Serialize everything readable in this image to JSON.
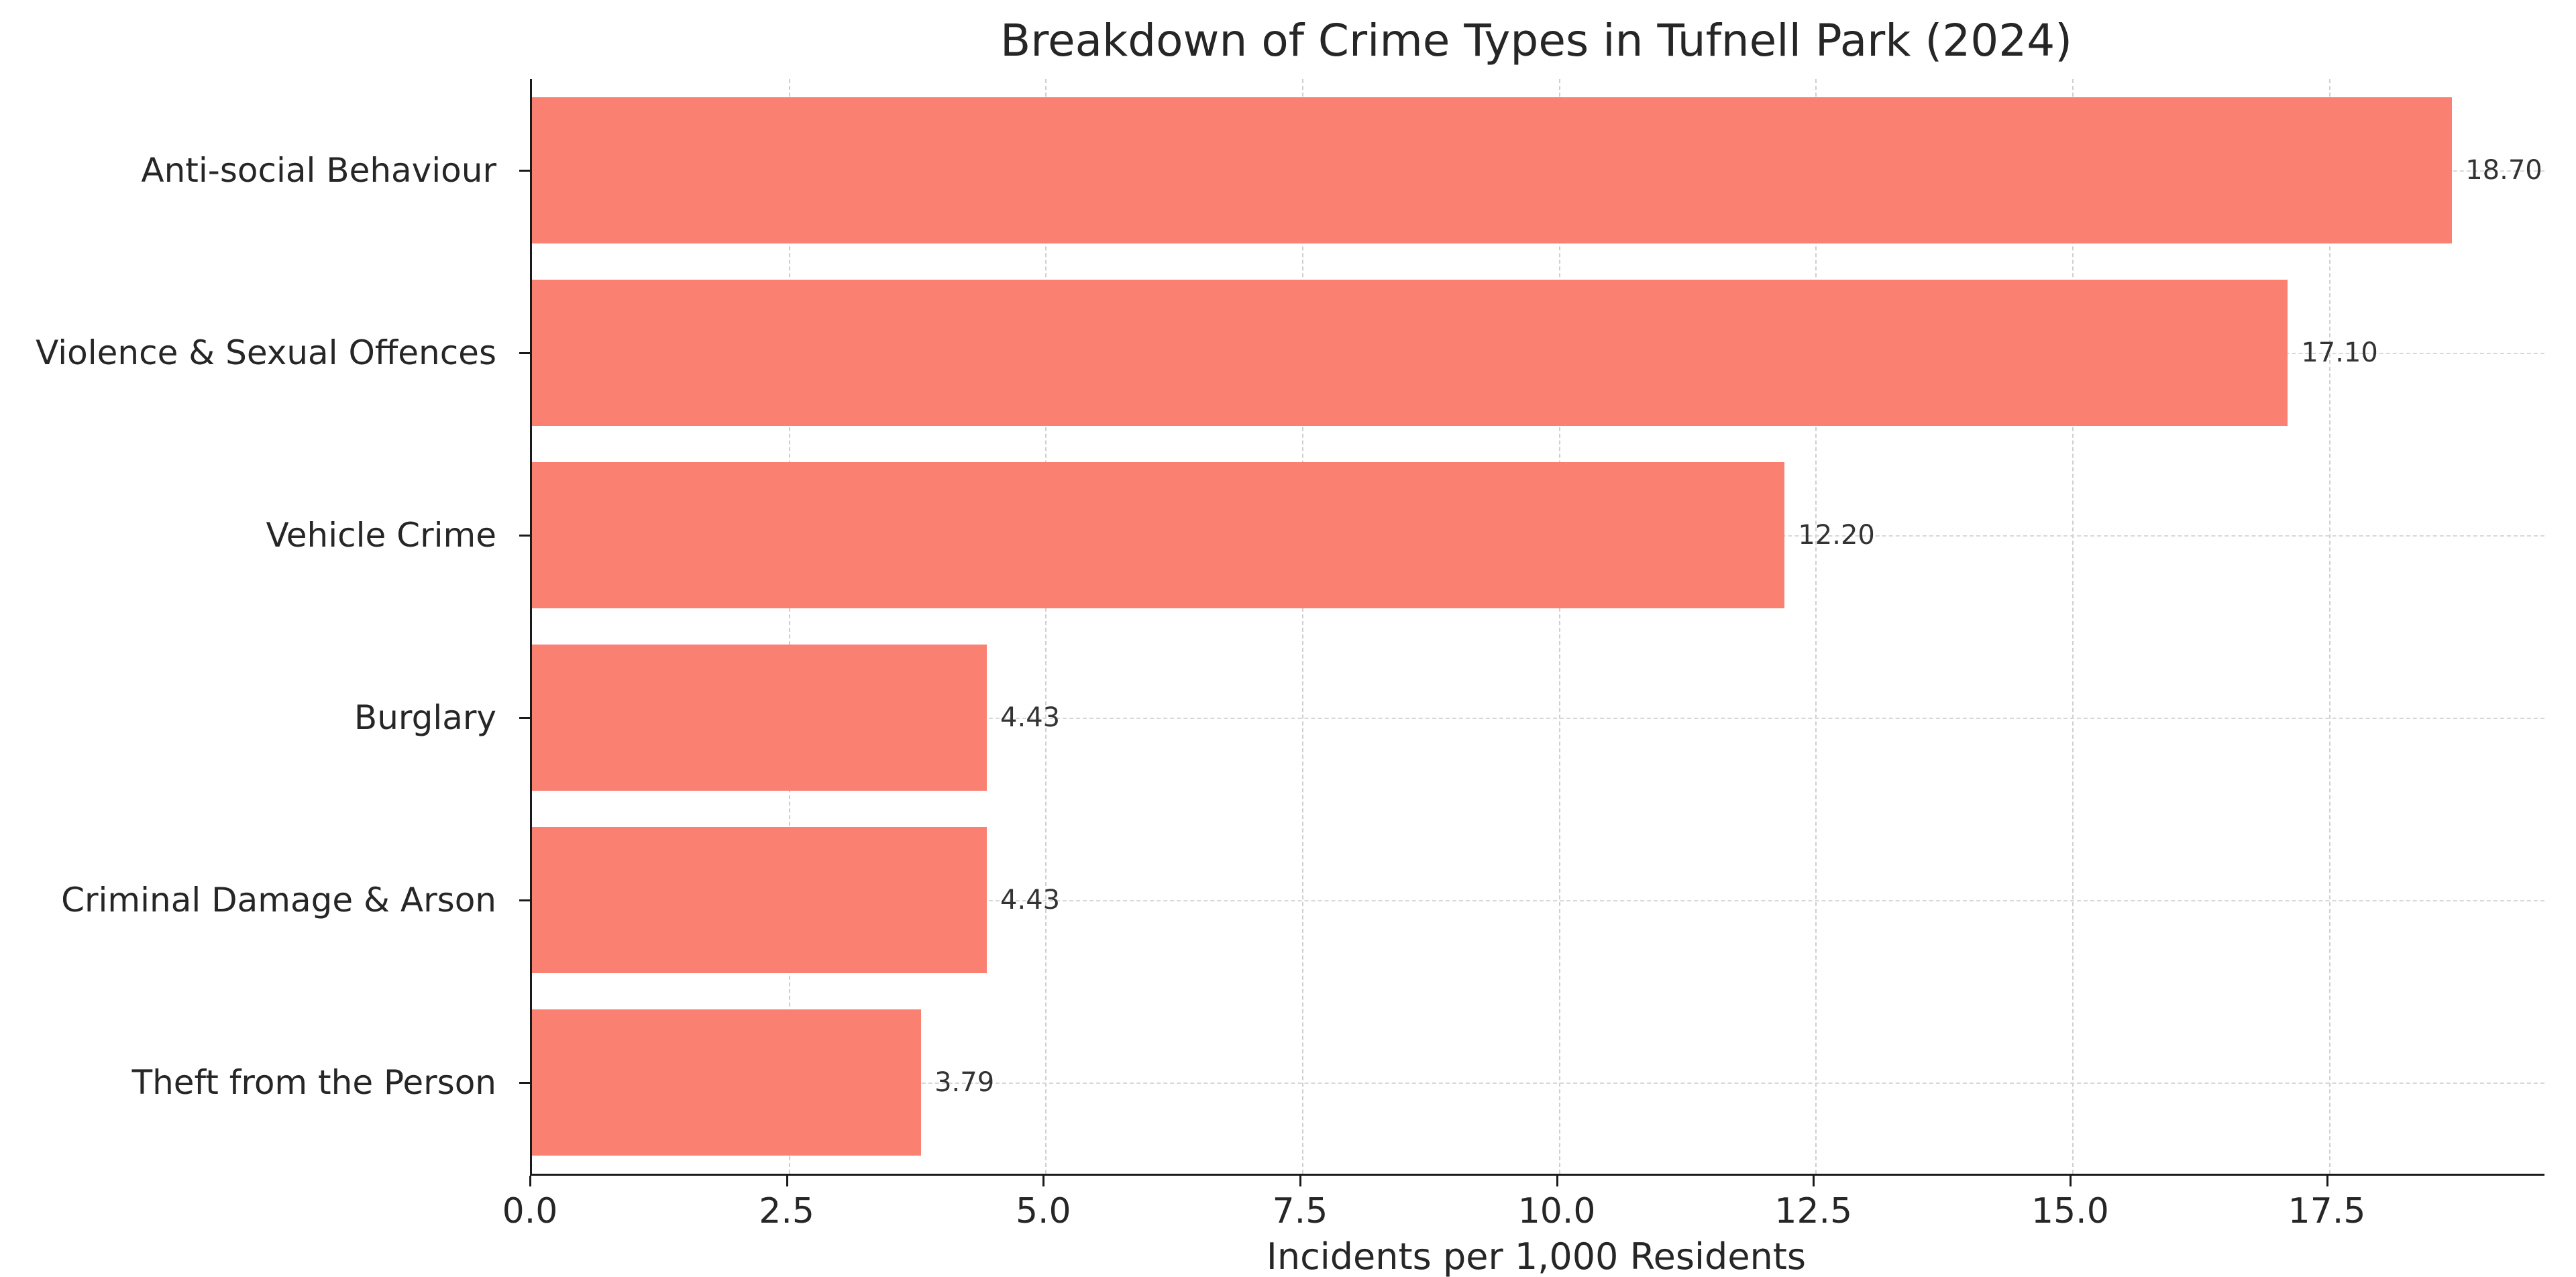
{
  "chart_data": {
    "type": "bar",
    "orientation": "horizontal",
    "title": "Breakdown of Crime Types in Tufnell Park (2024)",
    "xlabel": "Incidents per 1,000 Residents",
    "ylabel": "",
    "categories": [
      "Anti-social Behaviour",
      "Violence & Sexual Offences",
      "Vehicle Crime",
      "Burglary",
      "Criminal Damage & Arson",
      "Theft from the Person"
    ],
    "values": [
      18.7,
      17.1,
      12.2,
      4.43,
      4.43,
      3.79
    ],
    "value_labels": [
      "18.70",
      "17.10",
      "12.20",
      "4.43",
      "4.43",
      "3.79"
    ],
    "xlim": [
      0,
      19.6
    ],
    "xticks": [
      0.0,
      2.5,
      5.0,
      7.5,
      10.0,
      12.5,
      15.0,
      17.5
    ],
    "xtick_labels": [
      "0.0",
      "2.5",
      "5.0",
      "7.5",
      "10.0",
      "12.5",
      "15.0",
      "17.5"
    ],
    "bar_color": "#FA8072",
    "grid": "dashed",
    "grid_color": "#cfcfcf",
    "text_color": "#262626",
    "legend": "none"
  }
}
